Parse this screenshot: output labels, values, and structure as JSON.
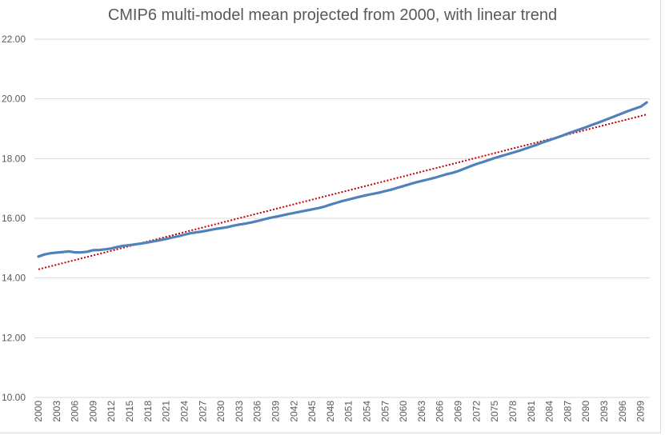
{
  "chart_data": {
    "type": "line",
    "title": "CMIP6 multi-model mean projected from 2000, with linear trend",
    "xlabel": "",
    "ylabel": "",
    "ylim": [
      10,
      22
    ],
    "yticks": [
      "10.00",
      "12.00",
      "14.00",
      "16.00",
      "18.00",
      "20.00",
      "22.00"
    ],
    "ytick_values": [
      10,
      12,
      14,
      16,
      18,
      20,
      22
    ],
    "grid": true,
    "legend": "none",
    "x_tick_labels": [
      "2000",
      "2003",
      "2006",
      "2009",
      "2012",
      "2015",
      "2018",
      "2021",
      "2024",
      "2027",
      "2030",
      "2033",
      "2036",
      "2039",
      "2042",
      "2045",
      "2048",
      "2051",
      "2054",
      "2057",
      "2060",
      "2063",
      "2066",
      "2069",
      "2072",
      "2075",
      "2078",
      "2081",
      "2084",
      "2087",
      "2090",
      "2093",
      "2096",
      "2099"
    ],
    "x": [
      2000,
      2001,
      2002,
      2003,
      2004,
      2005,
      2006,
      2007,
      2008,
      2009,
      2010,
      2011,
      2012,
      2013,
      2014,
      2015,
      2016,
      2017,
      2018,
      2019,
      2020,
      2021,
      2022,
      2023,
      2024,
      2025,
      2026,
      2027,
      2028,
      2029,
      2030,
      2031,
      2032,
      2033,
      2034,
      2035,
      2036,
      2037,
      2038,
      2039,
      2040,
      2041,
      2042,
      2043,
      2044,
      2045,
      2046,
      2047,
      2048,
      2049,
      2050,
      2051,
      2052,
      2053,
      2054,
      2055,
      2056,
      2057,
      2058,
      2059,
      2060,
      2061,
      2062,
      2063,
      2064,
      2065,
      2066,
      2067,
      2068,
      2069,
      2070,
      2071,
      2072,
      2073,
      2074,
      2075,
      2076,
      2077,
      2078,
      2079,
      2080,
      2081,
      2082,
      2083,
      2084,
      2085,
      2086,
      2087,
      2088,
      2089,
      2090,
      2091,
      2092,
      2093,
      2094,
      2095,
      2096,
      2097,
      2098,
      2099,
      2100
    ],
    "series": [
      {
        "name": "CMIP6 multi-model mean",
        "color": "#4f81bd",
        "style": "solid",
        "values": [
          14.72,
          14.79,
          14.83,
          14.85,
          14.87,
          14.89,
          14.86,
          14.86,
          14.88,
          14.93,
          14.94,
          14.96,
          14.99,
          15.04,
          15.08,
          15.1,
          15.13,
          15.16,
          15.19,
          15.23,
          15.27,
          15.31,
          15.36,
          15.4,
          15.45,
          15.5,
          15.53,
          15.56,
          15.6,
          15.64,
          15.67,
          15.7,
          15.75,
          15.79,
          15.82,
          15.86,
          15.91,
          15.96,
          16.01,
          16.05,
          16.09,
          16.14,
          16.18,
          16.22,
          16.26,
          16.3,
          16.34,
          16.39,
          16.46,
          16.52,
          16.58,
          16.63,
          16.68,
          16.73,
          16.78,
          16.82,
          16.86,
          16.91,
          16.96,
          17.02,
          17.08,
          17.14,
          17.2,
          17.25,
          17.3,
          17.35,
          17.41,
          17.47,
          17.52,
          17.58,
          17.66,
          17.74,
          17.82,
          17.88,
          17.95,
          18.02,
          18.08,
          18.14,
          18.2,
          18.26,
          18.33,
          18.4,
          18.47,
          18.55,
          18.62,
          18.69,
          18.76,
          18.84,
          18.91,
          18.98,
          19.05,
          19.13,
          19.2,
          19.28,
          19.36,
          19.44,
          19.52,
          19.6,
          19.67,
          19.74,
          19.88
        ]
      },
      {
        "name": "Linear trend",
        "color": "#c00000",
        "style": "dotted",
        "values_endpoints": {
          "2000": 14.29,
          "2100": 19.48
        }
      }
    ]
  }
}
